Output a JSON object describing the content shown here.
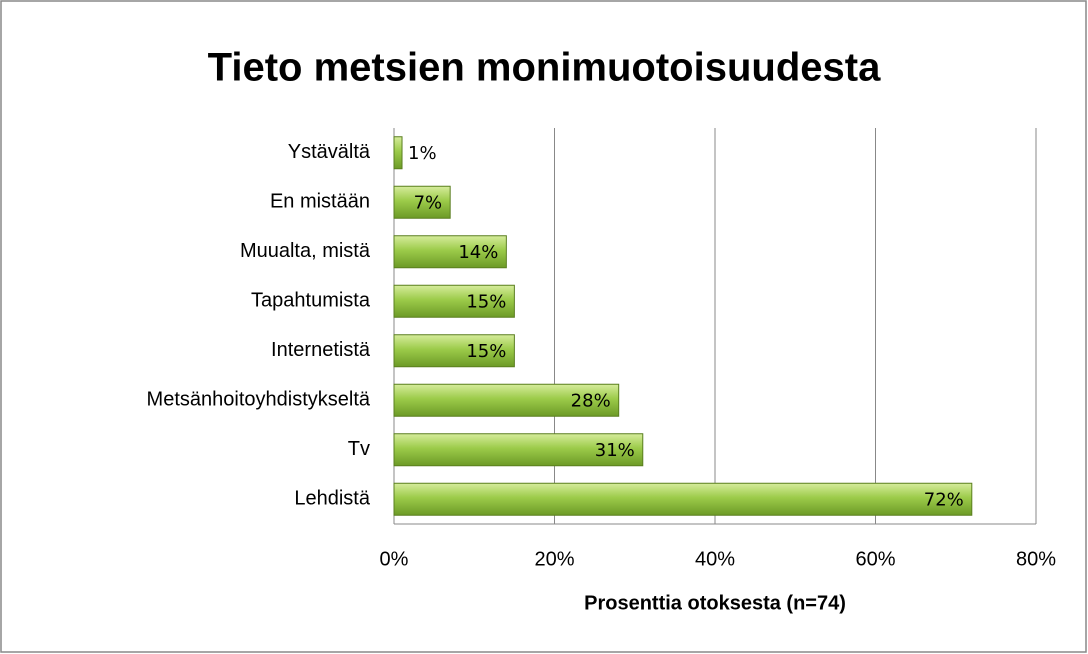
{
  "chart_data": {
    "type": "bar",
    "orientation": "horizontal",
    "title": "Tieto metsien monimuotoisuudesta",
    "x_label": "Prosenttia otoksesta (n=74)",
    "categories": [
      "Ystävältä",
      "En mistään",
      "Muualta, mistä",
      "Tapahtumista",
      "Internetistä",
      "Metsänhoitoyhdistykseltä",
      "Tv",
      "Lehdistä"
    ],
    "values": [
      1,
      7,
      14,
      15,
      15,
      28,
      31,
      72
    ],
    "value_labels": [
      "1%",
      "7%",
      "14%",
      "15%",
      "15%",
      "28%",
      "31%",
      "72%"
    ],
    "color": "#8fbf3f",
    "xlim": [
      0,
      80
    ],
    "xticks": [
      {
        "value": 0,
        "label": "0%"
      },
      {
        "value": 20,
        "label": "20%"
      },
      {
        "value": 40,
        "label": "40%"
      },
      {
        "value": 60,
        "label": "60%"
      },
      {
        "value": 80,
        "label": "80%"
      }
    ],
    "grid": true
  }
}
